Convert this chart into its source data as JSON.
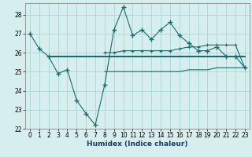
{
  "x": [
    0,
    1,
    2,
    3,
    4,
    5,
    6,
    7,
    8,
    9,
    10,
    11,
    12,
    13,
    14,
    15,
    16,
    17,
    18,
    19,
    20,
    21,
    22,
    23
  ],
  "main_line": [
    27.0,
    26.2,
    25.8,
    24.9,
    25.1,
    23.5,
    22.8,
    22.2,
    24.3,
    27.2,
    28.4,
    26.9,
    27.2,
    26.7,
    27.2,
    27.6,
    26.9,
    26.5,
    26.1,
    26.1,
    26.3,
    25.8,
    25.8,
    25.2
  ],
  "flat_line1": [
    null,
    null,
    25.8,
    25.8,
    25.8,
    25.8,
    25.8,
    25.8,
    25.8,
    25.8,
    25.8,
    25.8,
    25.8,
    25.8,
    25.8,
    25.8,
    25.8,
    25.8,
    25.8,
    25.8,
    25.8,
    25.8,
    25.8,
    25.8
  ],
  "flat_line2": [
    null,
    null,
    null,
    null,
    null,
    null,
    null,
    null,
    25.0,
    25.0,
    25.0,
    25.0,
    25.0,
    25.0,
    25.0,
    25.0,
    25.0,
    25.1,
    25.1,
    25.1,
    25.2,
    25.2,
    25.2,
    25.2
  ],
  "upper_line": [
    null,
    null,
    null,
    null,
    null,
    null,
    null,
    null,
    26.0,
    26.0,
    26.1,
    26.1,
    26.1,
    26.1,
    26.1,
    26.1,
    26.2,
    26.3,
    26.3,
    26.4,
    26.4,
    26.4,
    26.4,
    25.2
  ],
  "color": "#1a6b6b",
  "bg_color": "#d6eeee",
  "grid_color": "#aad4d4",
  "xlabel": "Humidex (Indice chaleur)",
  "ylim": [
    22,
    28.6
  ],
  "xlim": [
    -0.5,
    23.5
  ],
  "yticks": [
    22,
    23,
    24,
    25,
    26,
    27,
    28
  ],
  "xticks": [
    0,
    1,
    2,
    3,
    4,
    5,
    6,
    7,
    8,
    9,
    10,
    11,
    12,
    13,
    14,
    15,
    16,
    17,
    18,
    19,
    20,
    21,
    22,
    23
  ]
}
